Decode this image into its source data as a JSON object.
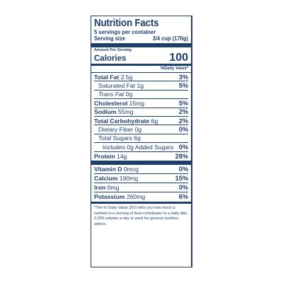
{
  "label": {
    "title": "Nutrition Facts",
    "servings_per_container": "5 servings per container",
    "serving_size_label": "Serving size",
    "serving_size_value": "3/4 cup (170g)",
    "amount_per_serving": "Amount Per Serving",
    "calories_label": "Calories",
    "calories_value": "100",
    "dv_header": "%Daily Value*",
    "nutrients": {
      "total_fat": {
        "name": "Total Fat",
        "amount": "2.5g",
        "dv": "3%"
      },
      "saturated_fat": {
        "name": "Saturated Fat",
        "amount": "1g",
        "dv": "5%"
      },
      "trans_fat": {
        "name": "Trans",
        "name2": "Fat",
        "amount": "0g"
      },
      "cholesterol": {
        "name": "Cholesterol",
        "amount": "15mg",
        "dv": "5%"
      },
      "sodium": {
        "name": "Sodium",
        "amount": "55mg",
        "dv": "2%"
      },
      "total_carb": {
        "name": "Total Carbohydrate",
        "amount": "6g",
        "dv": "2%"
      },
      "dietary_fiber": {
        "name": "Dietary Fiber",
        "amount": "0g",
        "dv": "0%"
      },
      "total_sugars": {
        "name": "Total Sugars",
        "amount": "6g"
      },
      "added_sugars": {
        "name": "Includes 0g Added Sugars",
        "dv": "0%"
      },
      "protein": {
        "name": "Protein",
        "amount": "14g",
        "dv": "28%"
      }
    },
    "vitamins": {
      "vitamin_d": {
        "name": "Vitamin D",
        "amount": "0mcg",
        "dv": "0%"
      },
      "calcium": {
        "name": "Calcium",
        "amount": "190mg",
        "dv": "15%"
      },
      "iron": {
        "name": "Iron",
        "amount": "0mg",
        "dv": "0%"
      },
      "potassium": {
        "name": "Potassium",
        "amount": "260mg",
        "dv": "6%"
      }
    },
    "footnote": "*The % Daily Value (DV) tells you how much a nutrient in a serving of food contributes to a daily diet. 2,000 calories a day is used for general nutrition advice.",
    "text_color": "#1e3f6e"
  }
}
